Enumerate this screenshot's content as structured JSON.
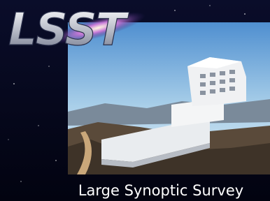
{
  "logo": {
    "text": "LSST"
  },
  "caption": {
    "text": "Large Synoptic Survey"
  }
}
